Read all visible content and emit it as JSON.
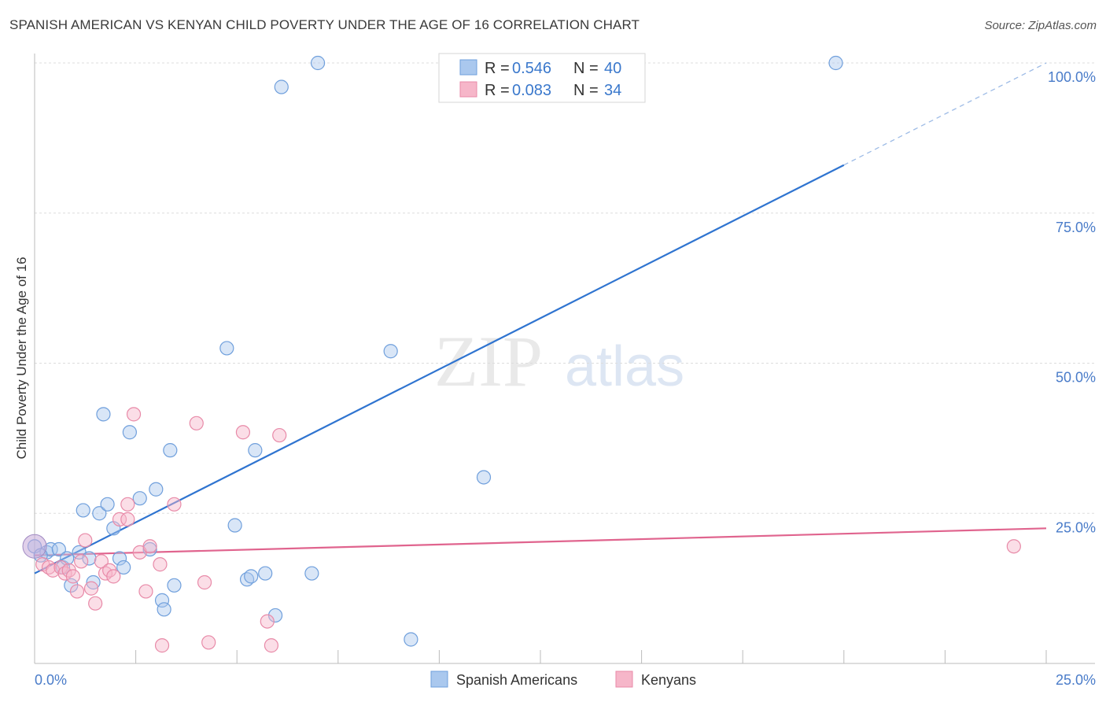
{
  "title": "SPANISH AMERICAN VS KENYAN CHILD POVERTY UNDER THE AGE OF 16 CORRELATION CHART",
  "source": "Source: ZipAtlas.com",
  "watermark": {
    "zip": "ZIP",
    "atlas": "atlas"
  },
  "colors": {
    "blue_fill": "#aac8ee",
    "blue_stroke": "#6f9fdc",
    "blue_line": "#2f74d0",
    "pink_fill": "#f6b6c9",
    "pink_stroke": "#e88aa8",
    "pink_line": "#e0648e",
    "tick_text": "#4a7cc9",
    "grid": "#dddddd"
  },
  "legend": {
    "rows": [
      {
        "r_label": "R =",
        "r_value": "0.546",
        "n_label": "N =",
        "n_value": "40",
        "series": "blue"
      },
      {
        "r_label": "R =",
        "r_value": "0.083",
        "n_label": "N =",
        "n_value": "34",
        "series": "pink"
      }
    ]
  },
  "bottom_legend": [
    "Spanish Americans",
    "Kenyans"
  ],
  "chart_data": {
    "type": "scatter",
    "title": "SPANISH AMERICAN VS KENYAN CHILD POVERTY UNDER THE AGE OF 16 CORRELATION CHART",
    "xlabel": "",
    "ylabel": "Child Poverty Under the Age of 16",
    "xlim": [
      0,
      25
    ],
    "ylim": [
      0,
      100
    ],
    "x_tick_labels": [
      {
        "value": 0,
        "label": "0.0%"
      },
      {
        "value": 25,
        "label": "25.0%"
      }
    ],
    "y_tick_labels": [
      {
        "value": 25,
        "label": "25.0%"
      },
      {
        "value": 50,
        "label": "50.0%"
      },
      {
        "value": 75,
        "label": "75.0%"
      },
      {
        "value": 100,
        "label": "100.0%"
      }
    ],
    "series": [
      {
        "name": "Spanish Americans",
        "color": "blue",
        "points": [
          [
            0.0,
            19.5
          ],
          [
            0.3,
            18.5
          ],
          [
            0.4,
            19.0
          ],
          [
            0.6,
            19.0
          ],
          [
            0.7,
            16.0
          ],
          [
            0.8,
            17.5
          ],
          [
            0.9,
            13.0
          ],
          [
            1.1,
            18.5
          ],
          [
            1.2,
            25.5
          ],
          [
            1.35,
            17.5
          ],
          [
            1.45,
            13.5
          ],
          [
            1.6,
            25.0
          ],
          [
            1.7,
            41.5
          ],
          [
            1.8,
            26.5
          ],
          [
            1.95,
            22.5
          ],
          [
            2.1,
            17.5
          ],
          [
            2.2,
            16.0
          ],
          [
            2.35,
            38.5
          ],
          [
            2.6,
            27.5
          ],
          [
            2.85,
            19.0
          ],
          [
            3.0,
            29.0
          ],
          [
            3.15,
            10.5
          ],
          [
            3.2,
            9.0
          ],
          [
            3.35,
            35.5
          ],
          [
            3.45,
            13.0
          ],
          [
            4.75,
            52.5
          ],
          [
            4.95,
            23.0
          ],
          [
            5.25,
            14.0
          ],
          [
            5.35,
            14.5
          ],
          [
            5.45,
            35.5
          ],
          [
            5.7,
            15.0
          ],
          [
            5.95,
            8.0
          ],
          [
            6.1,
            96.0
          ],
          [
            7.0,
            100.0
          ],
          [
            6.85,
            15.0
          ],
          [
            8.8,
            52.0
          ],
          [
            9.3,
            4.0
          ],
          [
            11.1,
            31.0
          ],
          [
            19.8,
            100.0
          ],
          [
            0.15,
            18.0
          ]
        ],
        "trend": {
          "x0": 0,
          "y0": 15.0,
          "x1": 20.0,
          "y1": 83.0,
          "dashed_to_x": 25.0,
          "dashed_to_y": 100.0
        }
      },
      {
        "name": "Kenyans",
        "color": "pink",
        "points": [
          [
            0.2,
            16.5
          ],
          [
            0.35,
            16.0
          ],
          [
            0.45,
            15.5
          ],
          [
            0.65,
            16.0
          ],
          [
            0.75,
            15.0
          ],
          [
            0.85,
            15.5
          ],
          [
            0.95,
            14.5
          ],
          [
            1.05,
            12.0
          ],
          [
            1.15,
            17.0
          ],
          [
            1.25,
            20.5
          ],
          [
            1.4,
            12.5
          ],
          [
            1.5,
            10.0
          ],
          [
            1.65,
            17.0
          ],
          [
            1.75,
            15.0
          ],
          [
            1.85,
            15.5
          ],
          [
            1.95,
            14.5
          ],
          [
            2.1,
            24.0
          ],
          [
            2.3,
            24.0
          ],
          [
            2.3,
            26.5
          ],
          [
            2.45,
            41.5
          ],
          [
            2.6,
            18.5
          ],
          [
            2.75,
            12.0
          ],
          [
            2.85,
            19.5
          ],
          [
            3.1,
            16.5
          ],
          [
            3.15,
            3.0
          ],
          [
            3.45,
            26.5
          ],
          [
            4.0,
            40.0
          ],
          [
            4.2,
            13.5
          ],
          [
            4.3,
            3.5
          ],
          [
            5.15,
            38.5
          ],
          [
            5.75,
            7.0
          ],
          [
            5.85,
            3.0
          ],
          [
            6.05,
            38.0
          ],
          [
            24.2,
            19.5
          ]
        ],
        "trend": {
          "x0": 0,
          "y0": 18.0,
          "x1": 25.0,
          "y1": 22.5
        }
      }
    ]
  }
}
